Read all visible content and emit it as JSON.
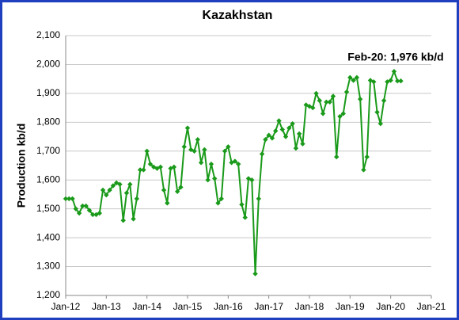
{
  "chart_data": {
    "type": "line",
    "title": "Kazakhstan",
    "y_label": "Production kb/d",
    "annotation": "Feb-20: 1,976 kb/d",
    "categories": [
      "Jan-12",
      null,
      null,
      null,
      null,
      null,
      null,
      null,
      null,
      null,
      null,
      null,
      "Jan-13",
      null,
      null,
      null,
      null,
      null,
      null,
      null,
      null,
      null,
      null,
      null,
      "Jan-14",
      null,
      null,
      null,
      null,
      null,
      null,
      null,
      null,
      null,
      null,
      null,
      "Jan-15",
      null,
      null,
      null,
      null,
      null,
      null,
      null,
      null,
      null,
      null,
      null,
      "Jan-16",
      null,
      null,
      null,
      null,
      null,
      null,
      null,
      null,
      null,
      null,
      null,
      "Jan-17",
      null,
      null,
      null,
      null,
      null,
      null,
      null,
      null,
      null,
      null,
      null,
      "Jan-18",
      null,
      null,
      null,
      null,
      null,
      null,
      null,
      null,
      null,
      null,
      null,
      "Jan-19",
      null,
      null,
      null,
      null,
      null,
      null,
      null,
      null,
      null,
      null,
      null,
      "Jan-20",
      null,
      null,
      null,
      null,
      null,
      null,
      null,
      null,
      null,
      null,
      null,
      "Jan-21"
    ],
    "series": [
      {
        "name": "Kazakhstan",
        "color": "#1a9a1a",
        "values": [
          1535,
          1535,
          1535,
          1500,
          1485,
          1510,
          1510,
          1495,
          1480,
          1480,
          1485,
          1565,
          1548,
          1565,
          1580,
          1590,
          1585,
          1460,
          1555,
          1585,
          1465,
          1535,
          1635,
          1635,
          1700,
          1655,
          1645,
          1640,
          1645,
          1565,
          1520,
          1640,
          1645,
          1560,
          1575,
          1715,
          1780,
          1705,
          1700,
          1740,
          1660,
          1705,
          1600,
          1655,
          1605,
          1520,
          1535,
          1700,
          1715,
          1660,
          1665,
          1655,
          1515,
          1470,
          1605,
          1600,
          1275,
          1535,
          1690,
          1740,
          1755,
          1745,
          1770,
          1805,
          1775,
          1750,
          1780,
          1795,
          1710,
          1760,
          1725,
          1860,
          1855,
          1850,
          1900,
          1875,
          1830,
          1870,
          1870,
          1890,
          1680,
          1820,
          1830,
          1905,
          1955,
          1945,
          1955,
          1880,
          1635,
          1680,
          1945,
          1940,
          1835,
          1795,
          1875,
          1940,
          1945,
          1976,
          1943,
          1943,
          null,
          null,
          null,
          null,
          null,
          null,
          null,
          null,
          null
        ]
      }
    ],
    "ylim": [
      1200,
      2100
    ],
    "yticks": [
      {
        "value": 1200,
        "label": "1,200"
      },
      {
        "value": 1300,
        "label": "1,300"
      },
      {
        "value": 1400,
        "label": "1,400"
      },
      {
        "value": 1500,
        "label": "1,500"
      },
      {
        "value": 1600,
        "label": "1,600"
      },
      {
        "value": 1700,
        "label": "1,700"
      },
      {
        "value": 1800,
        "label": "1,800"
      },
      {
        "value": 1900,
        "label": "1,900"
      },
      {
        "value": 2000,
        "label": "2,000"
      },
      {
        "value": 2100,
        "label": "2,100"
      }
    ],
    "grid": true
  }
}
